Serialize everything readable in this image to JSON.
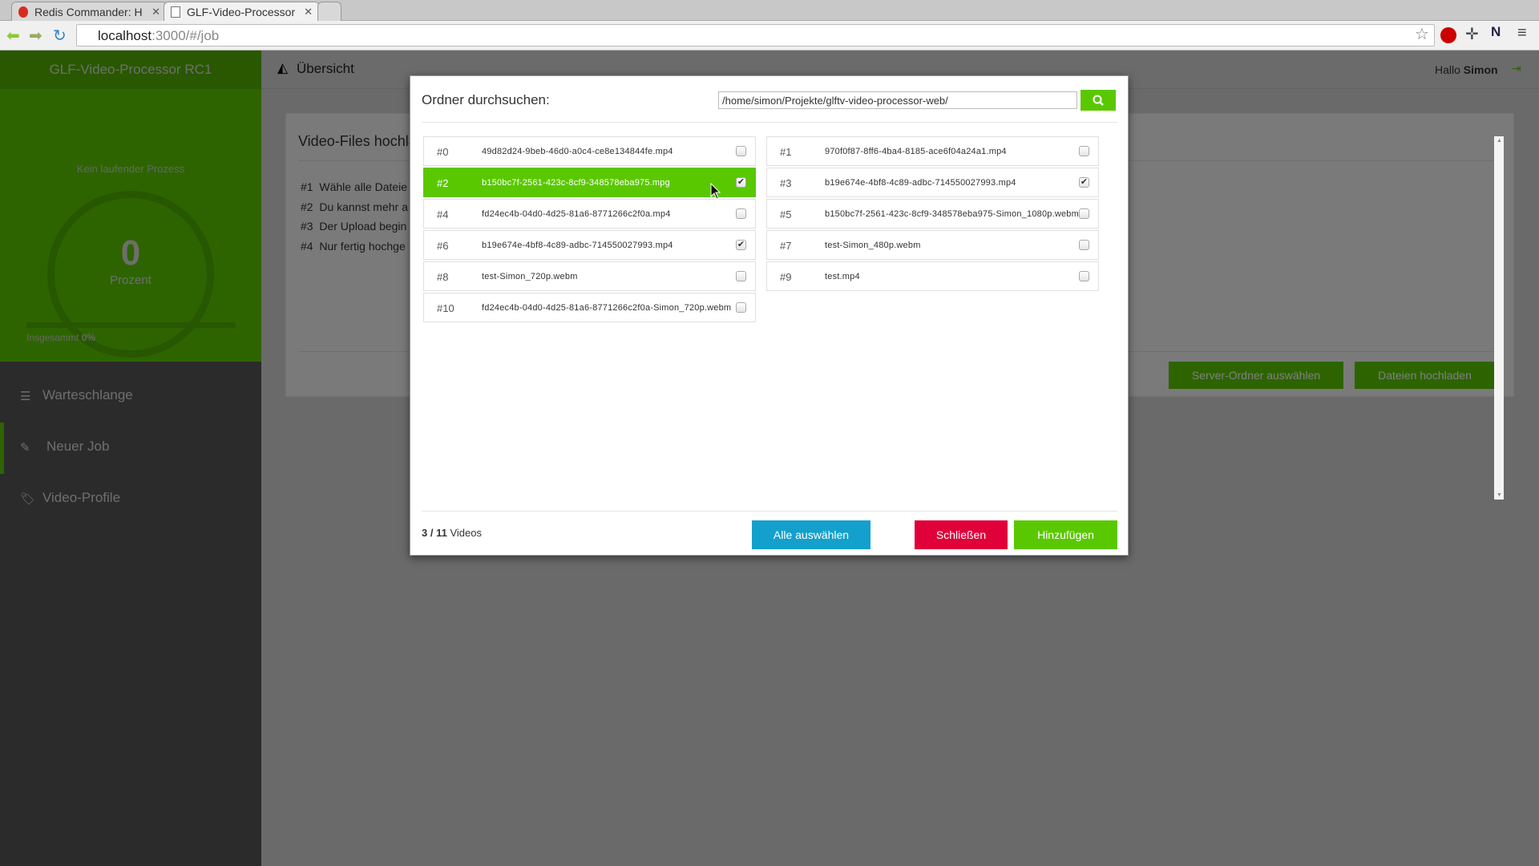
{
  "browser": {
    "tabs": [
      {
        "label": "Redis Commander: H"
      },
      {
        "label": "GLF-Video-Processor"
      }
    ],
    "url_host": "localhost",
    "url_rest": ":3000/#/job"
  },
  "sidebar": {
    "title": "GLF-Video-Processor RC1",
    "status": "Kein laufender Prozess",
    "progress_value": "0",
    "progress_unit": "Prozent",
    "total_label": "Insgesammt",
    "total_value": "0%",
    "progress_fraction": 0,
    "items": [
      {
        "label": "Warteschlange",
        "icon": "list-icon"
      },
      {
        "label": "Neuer Job",
        "icon": "magic-wand-icon",
        "active": true
      },
      {
        "label": "Video-Profile",
        "icon": "tags-icon"
      }
    ]
  },
  "header": {
    "title": "Übersicht",
    "greeting": "Hallo",
    "user": "Simon"
  },
  "panel": {
    "title": "Video-Files hochla",
    "steps": [
      {
        "n": "#1",
        "t": "Wähle alle Dateie"
      },
      {
        "n": "#2",
        "t": "Du kannst mehr a"
      },
      {
        "n": "#3",
        "t": "Der Upload begin"
      },
      {
        "n": "#4",
        "t": "Nur fertig hochge"
      }
    ],
    "server_button": "Server-Ordner auswählen",
    "upload_button": "Dateien hochladen"
  },
  "modal": {
    "title": "Ordner durchsuchen:",
    "path": "/home/simon/Projekte/glftv-video-processor-web/",
    "files": [
      {
        "n": "#0",
        "name": "49d82d24-9beb-46d0-a0c4-ce8e134844fe.mp4",
        "checked": false
      },
      {
        "n": "#1",
        "name": "970f0f87-8ff6-4ba4-8185-ace6f04a24a1.mp4",
        "checked": false
      },
      {
        "n": "#2",
        "name": "b150bc7f-2561-423c-8cf9-348578eba975.mpg",
        "checked": true,
        "highlight": true
      },
      {
        "n": "#3",
        "name": "b19e674e-4bf8-4c89-adbc-714550027993.mp4",
        "checked": true
      },
      {
        "n": "#4",
        "name": "fd24ec4b-04d0-4d25-81a6-8771266c2f0a.mp4",
        "checked": false
      },
      {
        "n": "#5",
        "name": "b150bc7f-2561-423c-8cf9-348578eba975-Simon_1080p.webm",
        "checked": false
      },
      {
        "n": "#6",
        "name": "b19e674e-4bf8-4c89-adbc-714550027993.mp4",
        "checked": true
      },
      {
        "n": "#7",
        "name": "test-Simon_480p.webm",
        "checked": false
      },
      {
        "n": "#8",
        "name": "test-Simon_720p.webm",
        "checked": false
      },
      {
        "n": "#9",
        "name": "test.mp4",
        "checked": false
      },
      {
        "n": "#10",
        "name": "fd24ec4b-04d0-4d25-81a6-8771266c2f0a-Simon_720p.webm",
        "checked": false
      }
    ],
    "count_selected": "3",
    "count_total": "11",
    "count_label": "Videos",
    "select_all": "Alle auswählen",
    "close": "Schließen",
    "add": "Hinzufügen"
  },
  "colors": {
    "accent": "#5ac800",
    "info": "#14a0cc",
    "danger": "#e0003a"
  }
}
